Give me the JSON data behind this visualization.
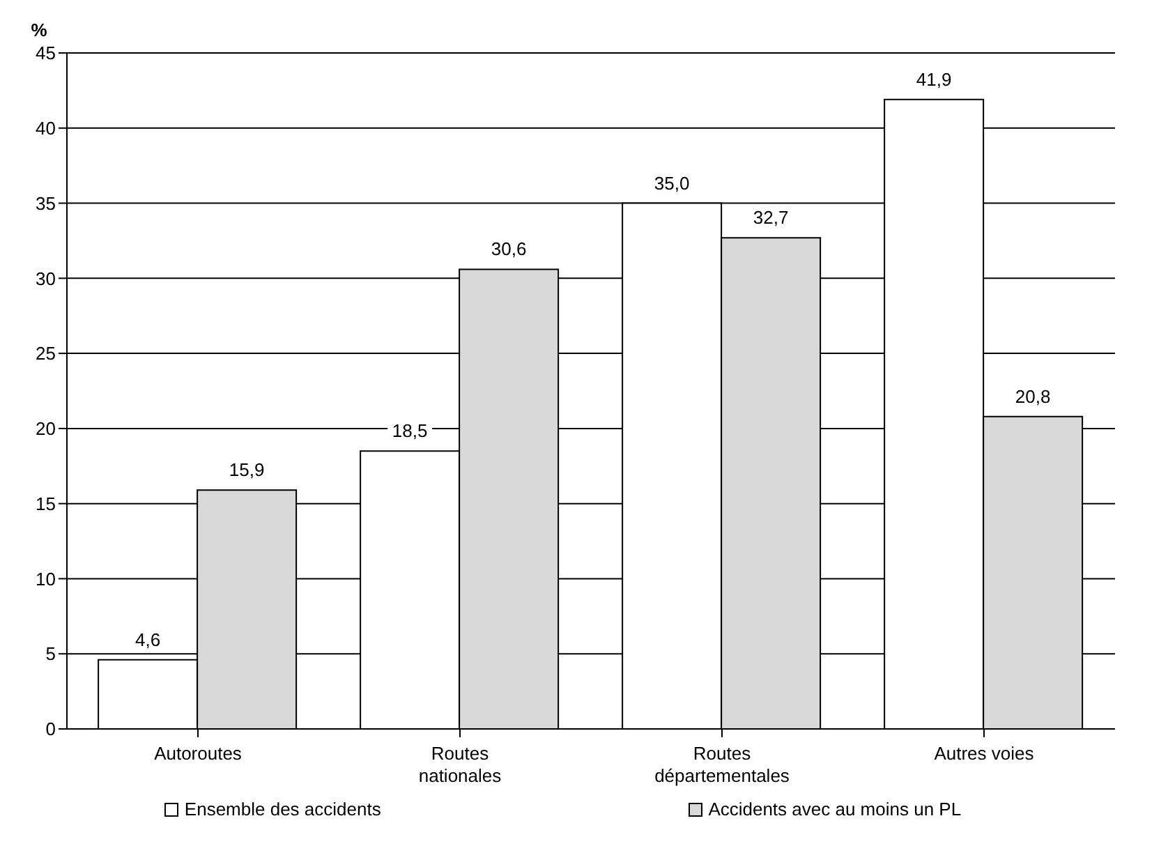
{
  "chart_data": {
    "type": "bar",
    "ylabel": "%",
    "categories": [
      "Autoroutes",
      "Routes\nnationales",
      "Routes\ndépartementales",
      "Autres voies"
    ],
    "series": [
      {
        "name": "Ensemble des accidents",
        "color": "#ffffff",
        "values": [
          4.6,
          18.5,
          35.0,
          41.9
        ],
        "value_labels": [
          "4,6",
          "18,5",
          "35,0",
          "41,9"
        ]
      },
      {
        "name": "Accidents avec au moins un PL",
        "color": "#d9d9d9",
        "values": [
          15.9,
          30.6,
          32.7,
          20.8
        ],
        "value_labels": [
          "15,9",
          "30,6",
          "32,7",
          "20,8"
        ]
      }
    ],
    "ylim": [
      0,
      45
    ],
    "yticks": [
      0,
      5,
      10,
      15,
      20,
      25,
      30,
      35,
      40,
      45
    ],
    "grid": "y",
    "legend": "bottom"
  }
}
